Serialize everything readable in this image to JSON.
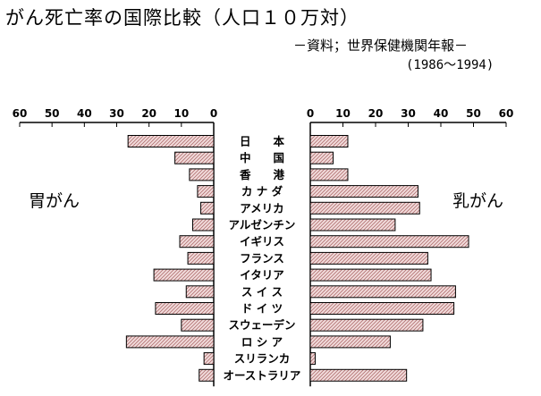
{
  "title": "がん死亡率の国際比較（人口１０万対）",
  "source": "－資料；世界保健機関年報－",
  "period": "(1986～1994)",
  "chart_data": {
    "type": "bar",
    "orientation": "horizontal-butterfly",
    "categories": [
      "日　　本",
      "中　　国",
      "香　　港",
      "カ ナ ダ",
      "アメリカ",
      "アルゼンチン",
      "イギリス",
      "フランス",
      "イタリア",
      "ス イ ス",
      "ド イ ツ",
      "スウェーデン",
      "ロ シ ア",
      "スリランカ",
      "オーストラリア"
    ],
    "series": [
      {
        "name": "胃がん",
        "side": "left",
        "values": [
          26.5,
          12,
          7.5,
          5,
          4,
          6.5,
          10.5,
          8,
          18.5,
          8.5,
          18,
          10,
          27,
          3,
          4.5
        ]
      },
      {
        "name": "乳がん",
        "side": "right",
        "values": [
          11.5,
          7,
          11.5,
          33,
          33.5,
          26,
          48.5,
          36,
          37,
          44.5,
          44,
          34.5,
          24.5,
          1.5,
          29.5
        ]
      }
    ],
    "xlim": [
      0,
      60
    ],
    "ticks": [
      0,
      10,
      20,
      30,
      40,
      50,
      60
    ],
    "tick_labels": [
      "0",
      "10",
      "20",
      "30",
      "40",
      "50",
      "60"
    ],
    "grid": false,
    "colors": {
      "bar_fill": "#f2dcdc",
      "hatch": "#b07070",
      "edge": "#000000"
    }
  }
}
